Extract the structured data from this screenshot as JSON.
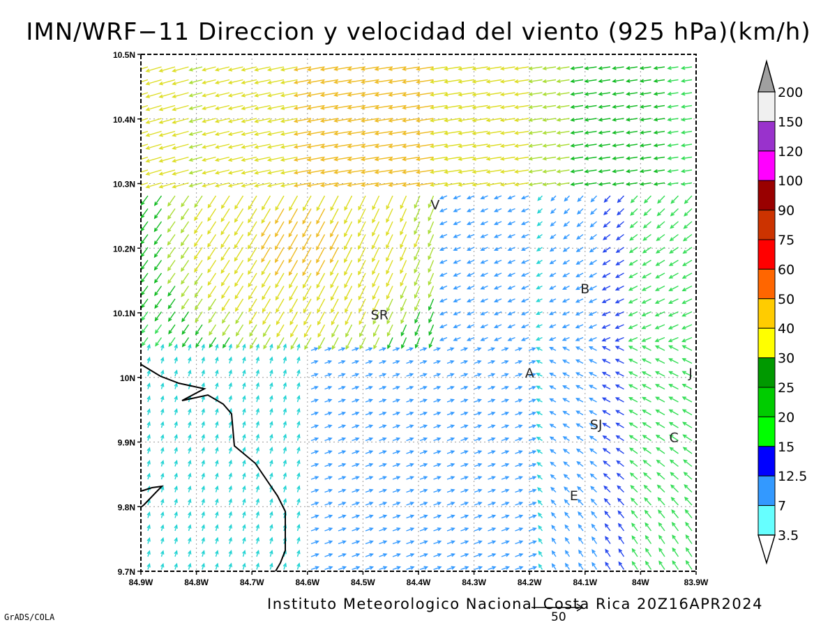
{
  "title": "IMN/WRF−11 Direccion y velocidad del viento (925 hPa)(km/h)",
  "credit": "Instituto Meteorologico Nacional Costa Rica 20Z16APR2024",
  "software": "GrADS/COLA",
  "map": {
    "lon_range": [
      -84.9,
      -83.9
    ],
    "lat_range": [
      9.7,
      10.5
    ],
    "lon_ticks": [
      "84.9W",
      "84.8W",
      "84.7W",
      "84.6W",
      "84.5W",
      "84.4W",
      "84.3W",
      "84.2W",
      "84.1W",
      "84W",
      "83.9W"
    ],
    "lat_ticks": [
      "9.7N",
      "9.8N",
      "9.9N",
      "10N",
      "10.1N",
      "10.2N",
      "10.3N",
      "10.4N",
      "10.5N"
    ],
    "grid": "dotted",
    "places": [
      {
        "name": "V",
        "lon": -84.37,
        "lat": 10.26
      },
      {
        "name": "SR",
        "lon": -84.47,
        "lat": 10.09
      },
      {
        "name": "B",
        "lon": -84.1,
        "lat": 10.13
      },
      {
        "name": "A",
        "lon": -84.2,
        "lat": 10.0
      },
      {
        "name": "J",
        "lon": -83.91,
        "lat": 10.0
      },
      {
        "name": "SJ",
        "lon": -84.08,
        "lat": 9.92
      },
      {
        "name": "C",
        "lon": -83.94,
        "lat": 9.9
      },
      {
        "name": "E",
        "lon": -84.12,
        "lat": 9.81
      }
    ],
    "vector_scale_label": "50"
  },
  "colorbar": {
    "labels": [
      "200",
      "150",
      "120",
      "100",
      "90",
      "75",
      "60",
      "50",
      "40",
      "30",
      "25",
      "20",
      "15",
      "12.5",
      "7",
      "3.5"
    ],
    "colors": [
      "#f0f0f0",
      "#9932cc",
      "#ff00ff",
      "#990000",
      "#cc3300",
      "#ff0000",
      "#ff6600",
      "#ffcc00",
      "#ffff00",
      "#009900",
      "#00cc00",
      "#00ff00",
      "#0000ff",
      "#3399ff",
      "#66ffff"
    ],
    "over_color": "#a0a0a0",
    "under_color": "#ffffff"
  }
}
